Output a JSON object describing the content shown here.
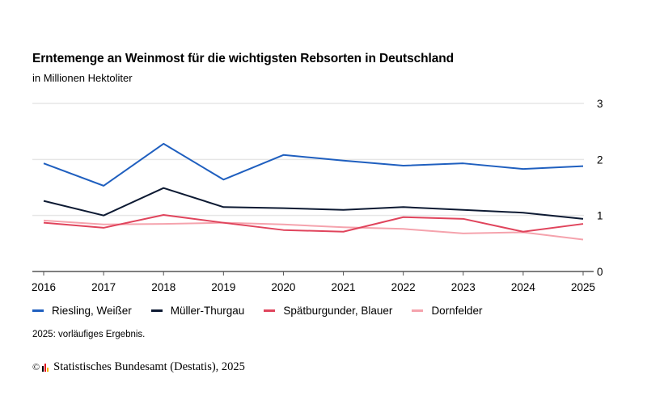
{
  "chart_data": {
    "type": "line",
    "title": "Erntemenge an Weinmost für die wichtigsten Rebsorten in Deutschland",
    "subtitle": "in Millionen Hektoliter",
    "xlabel": "",
    "ylabel": "",
    "x": [
      "2016",
      "2017",
      "2018",
      "2019",
      "2020",
      "2021",
      "2022",
      "2023",
      "2024",
      "2025"
    ],
    "ylim": [
      0,
      3
    ],
    "yticks": [
      "0",
      "1",
      "2",
      "3"
    ],
    "grid": true,
    "legend_position": "bottom",
    "series": [
      {
        "name": "Riesling, Weißer",
        "color": "#1f5fbf",
        "values": [
          1.93,
          1.53,
          2.28,
          1.64,
          2.08,
          1.98,
          1.89,
          1.93,
          1.83,
          1.88
        ]
      },
      {
        "name": "Müller-Thurgau",
        "color": "#0d1a33",
        "values": [
          1.26,
          1.0,
          1.49,
          1.15,
          1.13,
          1.1,
          1.15,
          1.1,
          1.05,
          0.94
        ]
      },
      {
        "name": "Spätburgunder, Blauer",
        "color": "#e0445c",
        "values": [
          0.87,
          0.78,
          1.01,
          0.87,
          0.74,
          0.71,
          0.97,
          0.94,
          0.71,
          0.85
        ]
      },
      {
        "name": "Dornfelder",
        "color": "#f5a3ad",
        "values": [
          0.91,
          0.84,
          0.85,
          0.87,
          0.84,
          0.79,
          0.76,
          0.68,
          0.7,
          0.57
        ]
      }
    ],
    "note": "2025: vorläufiges Ergebnis."
  },
  "source": {
    "copyright_symbol": "©",
    "text": "Statistisches Bundesamt (Destatis), 2025",
    "logo_colors": [
      "#000000",
      "#e0001b",
      "#f5b400"
    ]
  }
}
